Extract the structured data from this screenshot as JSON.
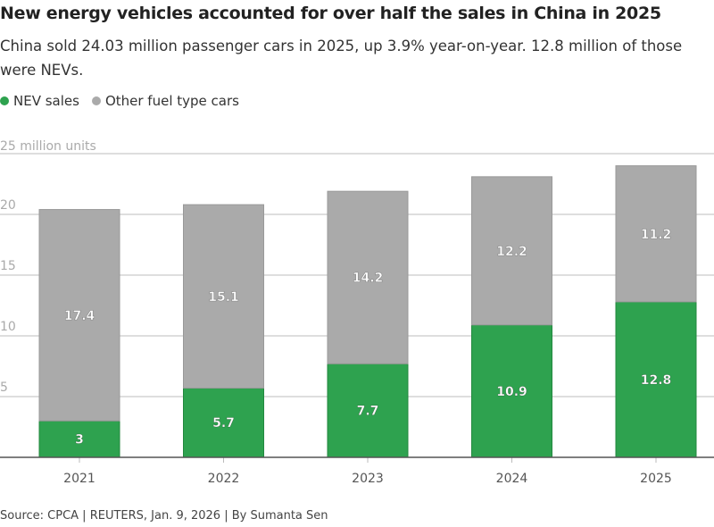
{
  "title": "New energy vehicles accounted for over half the sales in China in 2025",
  "subtitle": "China sold 24.03 million passenger cars in 2025, up 3.9% year-on-year. 12.8 million of those were NEVs.",
  "source": "Source: CPCA | REUTERS, Jan. 9, 2026 | By Sumanta Sen",
  "colors": {
    "nev": "#2ea24f",
    "other": "#aaaaaa"
  },
  "chart_data": {
    "type": "bar",
    "stacked": true,
    "categories": [
      "2021",
      "2022",
      "2023",
      "2024",
      "2025"
    ],
    "series": [
      {
        "name": "NEV sales",
        "values": [
          3,
          5.7,
          7.7,
          10.9,
          12.8
        ]
      },
      {
        "name": "Other fuel type cars",
        "values": [
          17.4,
          15.1,
          14.2,
          12.2,
          11.2
        ]
      }
    ],
    "ylabel": "25 million units",
    "yticks": [
      "5",
      "10",
      "15",
      "20"
    ],
    "ylim": [
      0,
      25
    ],
    "grid": true,
    "legend": "top-left"
  }
}
